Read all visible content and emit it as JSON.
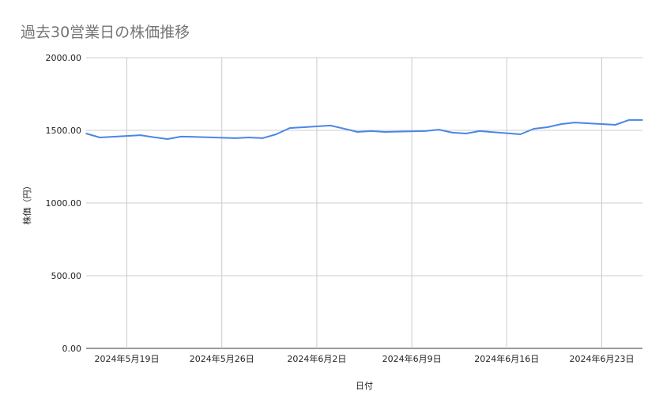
{
  "chart_data": {
    "type": "line",
    "title": "過去30営業日の株価推移",
    "xlabel": "日付",
    "ylabel": "株価（円）",
    "ylim": [
      0,
      2000
    ],
    "yticks": [
      "0.00",
      "500.00",
      "1000.00",
      "1500.00",
      "2000.00"
    ],
    "xlim": [
      "2024-05-16",
      "2024-06-26"
    ],
    "xticks": [
      {
        "date": "2024-05-19",
        "label": "2024年5月19日"
      },
      {
        "date": "2024-05-26",
        "label": "2024年5月26日"
      },
      {
        "date": "2024-06-02",
        "label": "2024年6月2日"
      },
      {
        "date": "2024-06-09",
        "label": "2024年6月9日"
      },
      {
        "date": "2024-06-16",
        "label": "2024年6月16日"
      },
      {
        "date": "2024-06-23",
        "label": "2024年6月23日"
      }
    ],
    "grid": true,
    "line_color": "#4a86e8",
    "x": [
      "2024-05-16",
      "2024-05-17",
      "2024-05-20",
      "2024-05-21",
      "2024-05-22",
      "2024-05-23",
      "2024-05-24",
      "2024-05-27",
      "2024-05-28",
      "2024-05-29",
      "2024-05-30",
      "2024-05-31",
      "2024-06-03",
      "2024-06-04",
      "2024-06-05",
      "2024-06-06",
      "2024-06-07",
      "2024-06-10",
      "2024-06-11",
      "2024-06-12",
      "2024-06-13",
      "2024-06-14",
      "2024-06-17",
      "2024-06-18",
      "2024-06-19",
      "2024-06-20",
      "2024-06-21",
      "2024-06-24",
      "2024-06-25",
      "2024-06-26"
    ],
    "values": [
      1478,
      1451,
      1467,
      1452,
      1440,
      1457,
      1455,
      1446,
      1451,
      1446,
      1473,
      1516,
      1533,
      1512,
      1489,
      1495,
      1489,
      1495,
      1505,
      1484,
      1478,
      1495,
      1473,
      1511,
      1522,
      1543,
      1554,
      1538,
      1571,
      1571
    ]
  }
}
